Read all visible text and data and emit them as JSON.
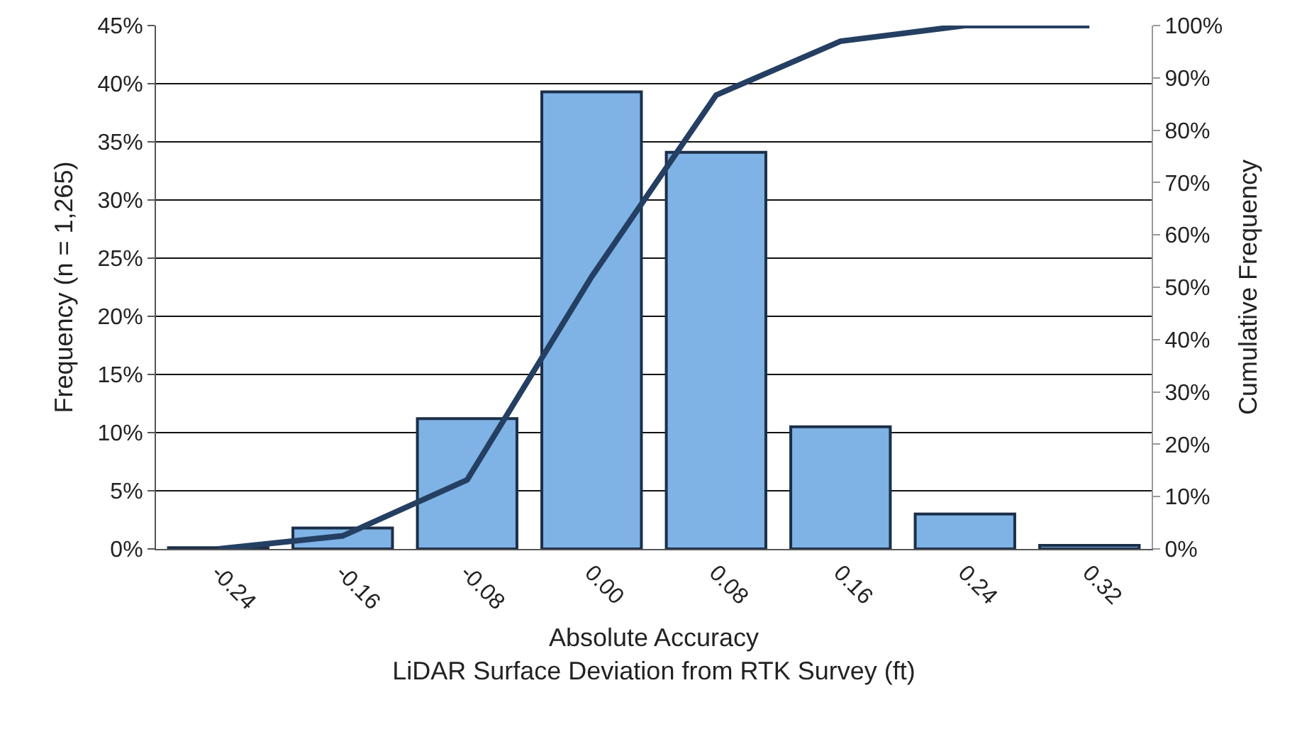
{
  "chart_data": {
    "type": "bar",
    "xlabel": "Absolute Accuracy\nLiDAR Surface Deviation from RTK Survey (ft)",
    "ylabel": "Frequency (n = 1,265)",
    "y2label": "Cumulative Frequency",
    "categories": [
      "-0.24",
      "-0.16",
      "-0.08",
      "0.00",
      "0.08",
      "0.16",
      "0.24",
      "0.32"
    ],
    "series": [
      {
        "color": "#7fb2e5",
        "values": [
          0.1,
          1.8,
          11.2,
          39.3,
          34.1,
          10.5,
          3.0,
          0.3
        ]
      },
      {
        "type": "line",
        "axis": "y2",
        "color": "#243f62",
        "values": [
          0,
          2.5,
          13.2,
          52,
          86.7,
          97,
          100,
          100
        ]
      }
    ],
    "ylim": [
      0,
      45
    ],
    "yticks": [
      {
        "value": 0,
        "label": "0%"
      },
      {
        "value": 5,
        "label": "5%"
      },
      {
        "value": 10,
        "label": "10%"
      },
      {
        "value": 15,
        "label": "15%"
      },
      {
        "value": 20,
        "label": "20%"
      },
      {
        "value": 25,
        "label": "25%"
      },
      {
        "value": 30,
        "label": "30%"
      },
      {
        "value": 35,
        "label": "35%"
      },
      {
        "value": 40,
        "label": "40%"
      },
      {
        "value": 45,
        "label": "45%"
      }
    ],
    "y2lim": [
      0,
      100
    ],
    "y2ticks": [
      {
        "value": 0,
        "label": "0%"
      },
      {
        "value": 10,
        "label": "10%"
      },
      {
        "value": 20,
        "label": "20%"
      },
      {
        "value": 30,
        "label": "30%"
      },
      {
        "value": 40,
        "label": "40%"
      },
      {
        "value": 50,
        "label": "50%"
      },
      {
        "value": 60,
        "label": "60%"
      },
      {
        "value": 70,
        "label": "70%"
      },
      {
        "value": 80,
        "label": "80%"
      },
      {
        "value": 90,
        "label": "90%"
      },
      {
        "value": 100,
        "label": "100%"
      }
    ],
    "grid": "y",
    "line_style": "solid",
    "marker": "none"
  }
}
